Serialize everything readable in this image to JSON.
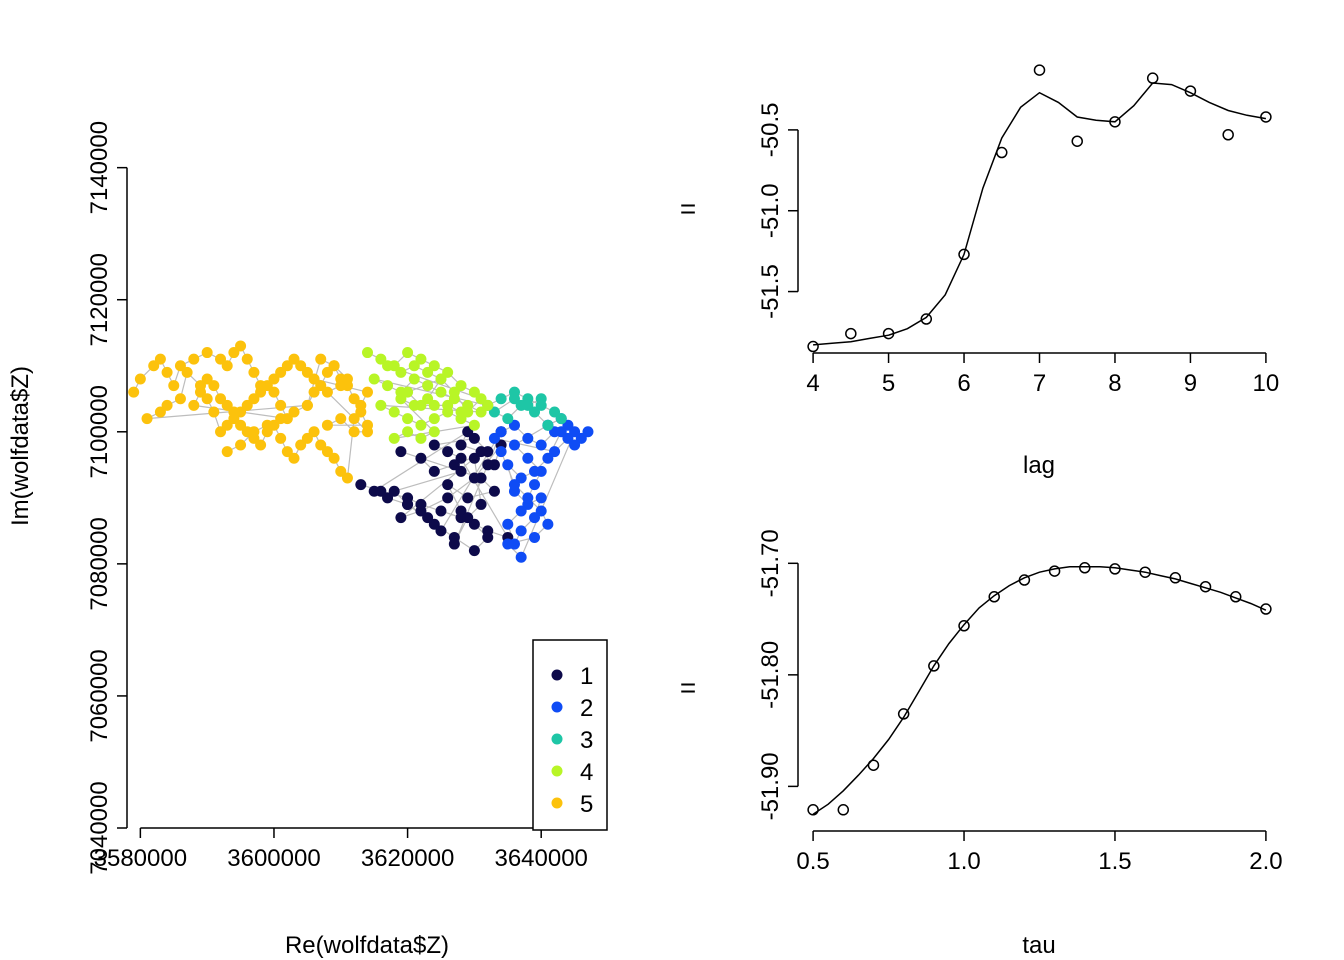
{
  "chart_data": [
    {
      "type": "scatter",
      "xlabel": "Re(wolfdata$Z)",
      "ylabel": "Im(wolfdata$Z)",
      "xlim": [
        3578000,
        3650000
      ],
      "ylim": [
        7040000,
        7156000
      ],
      "xticks": [
        3580000,
        3600000,
        3620000,
        3640000
      ],
      "xtick_labels": [
        "3580000",
        "3600000",
        "3620000",
        "3640000"
      ],
      "yticks": [
        7040000,
        7060000,
        7080000,
        7100000,
        7120000,
        7140000
      ],
      "ytick_labels": [
        "7040000",
        "7060000",
        "7080000",
        "7100000",
        "7120000",
        "7140000"
      ],
      "grid": false,
      "legend": {
        "placement": "bottom-right",
        "entries": [
          {
            "label": "1",
            "color": "#0d0a4a"
          },
          {
            "label": "2",
            "color": "#0f4cf5"
          },
          {
            "label": "3",
            "color": "#1ec6a6"
          },
          {
            "label": "4",
            "color": "#b8f526"
          },
          {
            "label": "5",
            "color": "#fcc20c"
          }
        ]
      },
      "path_color": "#bdbdbd",
      "series": [
        {
          "name": "1",
          "color": "#0d0a4a",
          "x": [
            3613000,
            3616000,
            3620000,
            3622000,
            3625000,
            3628000,
            3630000,
            3632000,
            3635000,
            3628000,
            3626000,
            3624000,
            3630000,
            3632000,
            3627000,
            3624000,
            3622000,
            3619000,
            3631000,
            3633000,
            3629000,
            3626000,
            3628000,
            3632000,
            3630000,
            3627000,
            3624000,
            3620000,
            3617000,
            3615000,
            3629000,
            3628000,
            3631000,
            3633000,
            3634000,
            3630000,
            3626000,
            3622000,
            3619000,
            3630000,
            3631000,
            3629000,
            3627000,
            3632000,
            3634000,
            3625000,
            3623000,
            3620000,
            3618000,
            3628000
          ],
          "y": [
            7092000,
            7091000,
            7090000,
            7089000,
            7088000,
            7087000,
            7086000,
            7085000,
            7084000,
            7096000,
            7097000,
            7098000,
            7099000,
            7097000,
            7095000,
            7094000,
            7096000,
            7097000,
            7093000,
            7091000,
            7090000,
            7092000,
            7088000,
            7084000,
            7082000,
            7084000,
            7086000,
            7089000,
            7090000,
            7091000,
            7100000,
            7098000,
            7097000,
            7095000,
            7098000,
            7093000,
            7090000,
            7088000,
            7087000,
            7096000,
            7089000,
            7087000,
            7083000,
            7095000,
            7100000,
            7085000,
            7087000,
            7089000,
            7091000,
            7094000
          ]
        },
        {
          "name": "2",
          "color": "#0f4cf5",
          "x": [
            3634000,
            3636000,
            3638000,
            3640000,
            3642000,
            3644000,
            3646000,
            3647000,
            3645000,
            3643000,
            3641000,
            3639000,
            3637000,
            3635000,
            3636000,
            3638000,
            3640000,
            3639000,
            3637000,
            3636000,
            3635000,
            3637000,
            3639000,
            3640000,
            3638000,
            3636000,
            3641000,
            3643000,
            3645000,
            3637000,
            3635000,
            3639000,
            3641000,
            3640000,
            3638000,
            3636000,
            3634000,
            3633000,
            3642000,
            3644000
          ],
          "y": [
            7100000,
            7101000,
            7099000,
            7098000,
            7100000,
            7101000,
            7099000,
            7100000,
            7098000,
            7100000,
            7096000,
            7094000,
            7093000,
            7095000,
            7091000,
            7089000,
            7090000,
            7087000,
            7085000,
            7083000,
            7086000,
            7088000,
            7092000,
            7094000,
            7096000,
            7098000,
            7101000,
            7102000,
            7100000,
            7081000,
            7083000,
            7084000,
            7086000,
            7088000,
            7090000,
            7092000,
            7097000,
            7099000,
            7097000,
            7099000
          ]
        },
        {
          "name": "3",
          "color": "#1ec6a6",
          "x": [
            3632000,
            3634000,
            3636000,
            3638000,
            3640000,
            3642000,
            3643000,
            3641000,
            3639000,
            3637000,
            3635000,
            3633000,
            3636000,
            3638000,
            3640000
          ],
          "y": [
            7104000,
            7105000,
            7106000,
            7105000,
            7104000,
            7103000,
            7102000,
            7101000,
            7103000,
            7104000,
            7102000,
            7103000,
            7105000,
            7104000,
            7105000
          ]
        },
        {
          "name": "4",
          "color": "#b8f526",
          "x": [
            3614000,
            3616000,
            3618000,
            3620000,
            3622000,
            3624000,
            3626000,
            3628000,
            3630000,
            3632000,
            3615000,
            3617000,
            3619000,
            3621000,
            3623000,
            3625000,
            3627000,
            3629000,
            3631000,
            3616000,
            3618000,
            3620000,
            3622000,
            3624000,
            3626000,
            3628000,
            3630000,
            3618000,
            3620000,
            3622000,
            3624000,
            3619000,
            3621000,
            3623000,
            3625000,
            3627000,
            3629000,
            3631000,
            3617000,
            3619000,
            3621000,
            3623000,
            3625000,
            3620000,
            3622000,
            3624000,
            3626000,
            3628000
          ],
          "y": [
            7112000,
            7111000,
            7110000,
            7112000,
            7111000,
            7110000,
            7109000,
            7107000,
            7106000,
            7104000,
            7108000,
            7107000,
            7106000,
            7108000,
            7107000,
            7106000,
            7105000,
            7104000,
            7103000,
            7104000,
            7103000,
            7102000,
            7101000,
            7102000,
            7103000,
            7102000,
            7101000,
            7099000,
            7100000,
            7099000,
            7100000,
            7105000,
            7104000,
            7105000,
            7108000,
            7106000,
            7103000,
            7105000,
            7110000,
            7109000,
            7110000,
            7109000,
            7108000,
            7106000,
            7104000,
            7104000,
            7104000,
            7103000
          ]
        },
        {
          "name": "5",
          "color": "#fcc20c",
          "x": [
            3579000,
            3580000,
            3582000,
            3583000,
            3584000,
            3585000,
            3586000,
            3588000,
            3590000,
            3592000,
            3593000,
            3594000,
            3595000,
            3596000,
            3597000,
            3598000,
            3600000,
            3601000,
            3602000,
            3588000,
            3589000,
            3590000,
            3591000,
            3592000,
            3593000,
            3594000,
            3595000,
            3596000,
            3597000,
            3598000,
            3599000,
            3600000,
            3601000,
            3602000,
            3603000,
            3604000,
            3605000,
            3606000,
            3607000,
            3608000,
            3609000,
            3610000,
            3611000,
            3612000,
            3613000,
            3614000,
            3606000,
            3605000,
            3604000,
            3603000,
            3602000,
            3601000,
            3600000,
            3599000,
            3598000,
            3597000,
            3596000,
            3595000,
            3594000,
            3593000,
            3592000,
            3591000,
            3590000,
            3589000,
            3587000,
            3586000,
            3584000,
            3583000,
            3581000,
            3605000,
            3606000,
            3607000,
            3608000,
            3609000,
            3610000,
            3611000,
            3612000,
            3613000,
            3614000,
            3608000,
            3610000,
            3612000,
            3614000,
            3608000,
            3610000,
            3611000,
            3609000,
            3607000,
            3605000,
            3603000,
            3601000,
            3599000,
            3597000,
            3595000,
            3593000
          ],
          "y": [
            7106000,
            7108000,
            7110000,
            7111000,
            7109000,
            7107000,
            7110000,
            7111000,
            7112000,
            7111000,
            7110000,
            7112000,
            7113000,
            7111000,
            7109000,
            7107000,
            7106000,
            7104000,
            7102000,
            7104000,
            7106000,
            7108000,
            7107000,
            7105000,
            7104000,
            7103000,
            7101000,
            7100000,
            7099000,
            7098000,
            7100000,
            7101000,
            7099000,
            7097000,
            7096000,
            7098000,
            7099000,
            7100000,
            7098000,
            7097000,
            7096000,
            7094000,
            7093000,
            7102000,
            7104000,
            7106000,
            7108000,
            7109000,
            7110000,
            7111000,
            7110000,
            7109000,
            7108000,
            7107000,
            7106000,
            7105000,
            7104000,
            7103000,
            7102000,
            7101000,
            7100000,
            7103000,
            7105000,
            7107000,
            7109000,
            7105000,
            7104000,
            7103000,
            7102000,
            7104000,
            7106000,
            7107000,
            7109000,
            7110000,
            7108000,
            7107000,
            7105000,
            7103000,
            7101000,
            7101000,
            7102000,
            7100000,
            7100000,
            7106000,
            7107000,
            7108000,
            7110000,
            7111000,
            7104000,
            7103000,
            7102000,
            7101000,
            7100000,
            7098000,
            7097000
          ]
        }
      ]
    },
    {
      "type": "line",
      "xlabel": "lag",
      "ylabel": "",
      "left_margin_label": "=",
      "xlim": [
        3.8,
        10.2
      ],
      "ylim": [
        -51.88,
        -50.08
      ],
      "xticks": [
        4,
        5,
        6,
        7,
        8,
        9,
        10
      ],
      "xtick_labels": [
        "4",
        "5",
        "6",
        "7",
        "8",
        "9",
        "10"
      ],
      "yticks": [
        -51.5,
        -51.0,
        -50.5
      ],
      "ytick_labels": [
        "-51.5",
        "-51.0",
        "-50.5"
      ],
      "grid": false,
      "points": {
        "x": [
          4,
          4.5,
          5,
          5.5,
          6,
          6.5,
          7,
          7.5,
          8,
          8.5,
          9,
          9.5,
          10
        ],
        "y": [
          -51.84,
          -51.76,
          -51.76,
          -51.67,
          -51.27,
          -50.64,
          -50.13,
          -50.57,
          -50.45,
          -50.18,
          -50.26,
          -50.53,
          -50.42
        ]
      },
      "smooth": {
        "x": [
          4,
          4.25,
          4.5,
          4.75,
          5,
          5.25,
          5.5,
          5.75,
          6,
          6.25,
          6.5,
          6.75,
          7,
          7.25,
          7.5,
          7.75,
          8,
          8.25,
          8.5,
          8.75,
          9,
          9.25,
          9.5,
          9.75,
          10
        ],
        "y": [
          -51.83,
          -51.82,
          -51.81,
          -51.79,
          -51.77,
          -51.73,
          -51.66,
          -51.52,
          -51.27,
          -50.86,
          -50.55,
          -50.36,
          -50.27,
          -50.33,
          -50.42,
          -50.44,
          -50.45,
          -50.35,
          -50.21,
          -50.22,
          -50.27,
          -50.33,
          -50.38,
          -50.41,
          -50.43
        ]
      }
    },
    {
      "type": "line",
      "xlabel": "tau",
      "ylabel": "",
      "left_margin_label": "=",
      "xlim": [
        0.45,
        2.05
      ],
      "ylim": [
        -51.94,
        -51.68
      ],
      "xticks": [
        0.5,
        1.0,
        1.5,
        2.0
      ],
      "xtick_labels": [
        "0.5",
        "1.0",
        "1.5",
        "2.0"
      ],
      "yticks": [
        -51.9,
        -51.8,
        -51.7
      ],
      "ytick_labels": [
        "-51.90",
        "-51.80",
        "-51.70"
      ],
      "grid": false,
      "points": {
        "x": [
          0.5,
          0.6,
          0.7,
          0.8,
          0.9,
          1.0,
          1.1,
          1.2,
          1.3,
          1.4,
          1.5,
          1.6,
          1.7,
          1.8,
          1.9,
          2.0
        ],
        "y": [
          -51.921,
          -51.921,
          -51.881,
          -51.835,
          -51.792,
          -51.756,
          -51.73,
          -51.715,
          -51.707,
          -51.704,
          -51.705,
          -51.708,
          -51.713,
          -51.721,
          -51.73,
          -51.741
        ]
      },
      "smooth": {
        "x": [
          0.5,
          0.55,
          0.6,
          0.65,
          0.7,
          0.75,
          0.8,
          0.85,
          0.9,
          0.95,
          1.0,
          1.05,
          1.1,
          1.15,
          1.2,
          1.25,
          1.3,
          1.35,
          1.4,
          1.45,
          1.5,
          1.55,
          1.6,
          1.65,
          1.7,
          1.75,
          1.8,
          1.85,
          1.9,
          1.95,
          2.0
        ],
        "y": [
          -51.925,
          -51.916,
          -51.904,
          -51.89,
          -51.875,
          -51.858,
          -51.838,
          -51.815,
          -51.792,
          -51.772,
          -51.755,
          -51.74,
          -51.729,
          -51.72,
          -51.713,
          -51.708,
          -51.705,
          -51.703,
          -51.703,
          -51.703,
          -51.704,
          -51.706,
          -51.708,
          -51.711,
          -51.714,
          -51.718,
          -51.722,
          -51.726,
          -51.731,
          -51.736,
          -51.742
        ]
      }
    }
  ]
}
